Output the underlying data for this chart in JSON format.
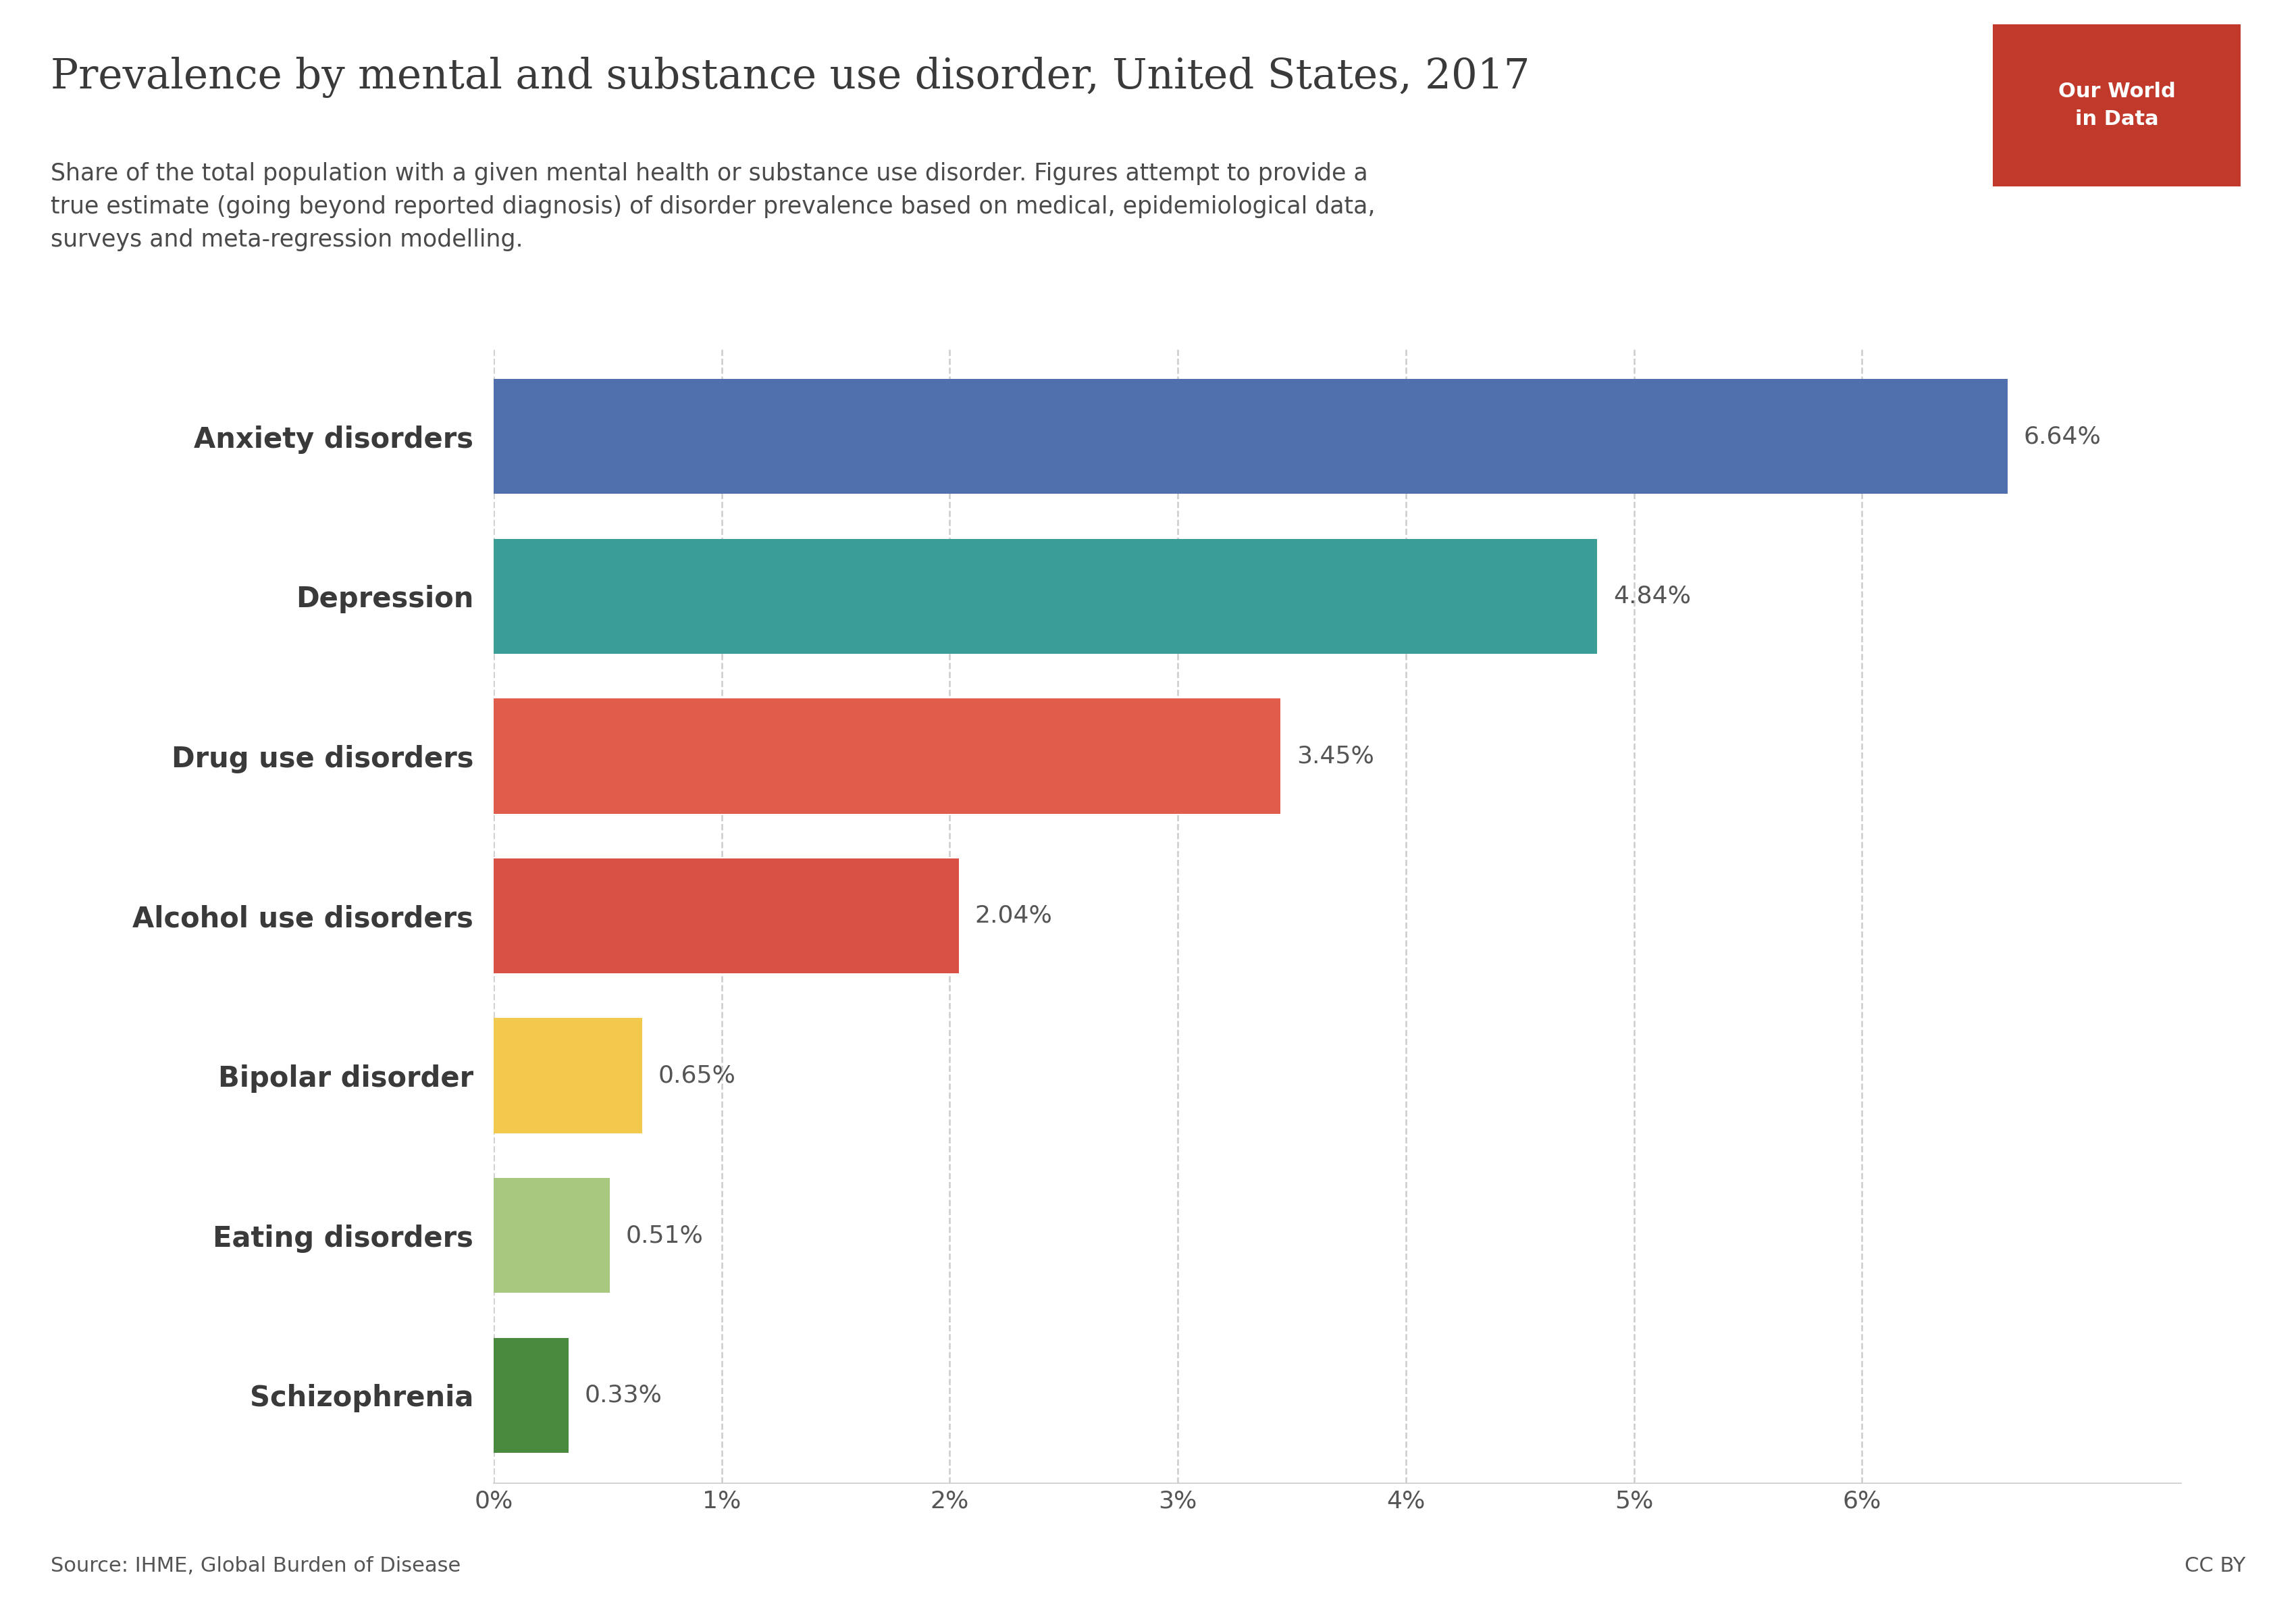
{
  "title": "Prevalence by mental and substance use disorder, United States, 2017",
  "subtitle": "Share of the total population with a given mental health or substance use disorder. Figures attempt to provide a\ntrue estimate (going beyond reported diagnosis) of disorder prevalence based on medical, epidemiological data,\nsurveys and meta-regression modelling.",
  "categories": [
    "Anxiety disorders",
    "Depression",
    "Drug use disorders",
    "Alcohol use disorders",
    "Bipolar disorder",
    "Eating disorders",
    "Schizophrenia"
  ],
  "values": [
    6.64,
    4.84,
    3.45,
    2.04,
    0.65,
    0.51,
    0.33
  ],
  "bar_colors": [
    "#4f6fad",
    "#3a9e97",
    "#e05c4b",
    "#d95045",
    "#f2c94c",
    "#a8c880",
    "#4a8a3f"
  ],
  "value_labels": [
    "6.64%",
    "4.84%",
    "3.45%",
    "2.04%",
    "0.65%",
    "0.51%",
    "0.33%"
  ],
  "xlabel_ticks": [
    0,
    1,
    2,
    3,
    4,
    5,
    6
  ],
  "xlabel_labels": [
    "0%",
    "1%",
    "2%",
    "3%",
    "4%",
    "5%",
    "6%"
  ],
  "xlim": [
    0,
    7.4
  ],
  "source_text": "Source: IHME, Global Burden of Disease",
  "license_text": "CC BY",
  "logo_text": "Our World\nin Data",
  "logo_bg": "#c0392b",
  "background_color": "#ffffff",
  "title_color": "#3a3a3a",
  "subtitle_color": "#4a4a4a",
  "label_color": "#3a3a3a",
  "tick_label_color": "#555555",
  "value_label_color": "#555555",
  "grid_color": "#cccccc",
  "title_fontsize": 44,
  "subtitle_fontsize": 25,
  "ylabel_fontsize": 30,
  "xlabel_fontsize": 26,
  "value_label_fontsize": 26,
  "source_fontsize": 22,
  "logo_fontsize": 22
}
